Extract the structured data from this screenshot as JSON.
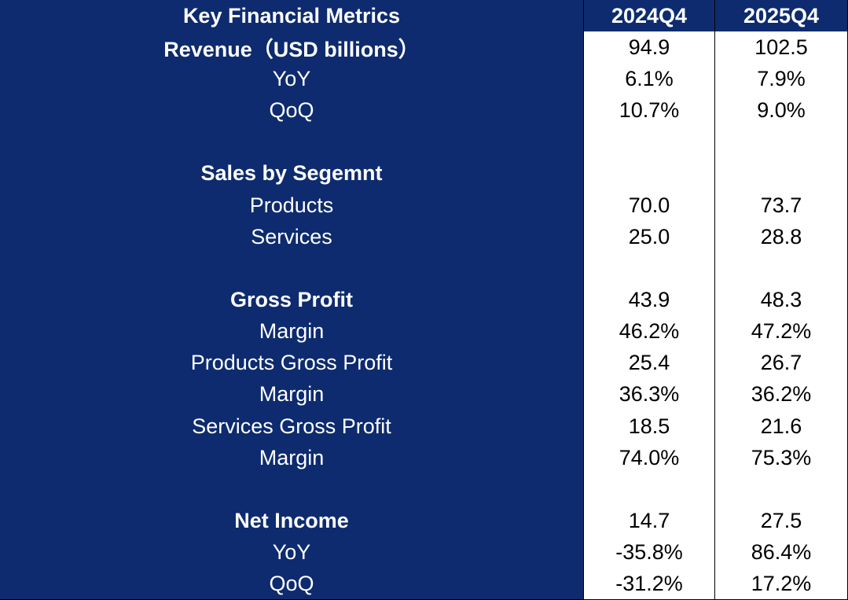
{
  "table": {
    "header": {
      "title": "Key Financial Metrics",
      "columns": [
        "2024Q4",
        "2025Q4"
      ]
    },
    "rows": [
      {
        "label": "Revenue（USD billions）",
        "values": [
          "94.9",
          "102.5"
        ],
        "bold": true
      },
      {
        "label": "YoY",
        "values": [
          "6.1%",
          "7.9%"
        ]
      },
      {
        "label": "QoQ",
        "values": [
          "10.7%",
          "9.0%"
        ]
      },
      null,
      {
        "label": "Sales by Segemnt",
        "bold": true
      },
      {
        "label": "Products",
        "values": [
          "70.0",
          "73.7"
        ]
      },
      {
        "label": "Services",
        "values": [
          "25.0",
          "28.8"
        ]
      },
      null,
      {
        "label": "Gross Profit",
        "values": [
          "43.9",
          "48.3"
        ],
        "bold": true
      },
      {
        "label": "Margin",
        "values": [
          "46.2%",
          "47.2%"
        ]
      },
      {
        "label": "Products Gross Profit",
        "values": [
          "25.4",
          "26.7"
        ]
      },
      {
        "label": "Margin",
        "values": [
          "36.3%",
          "36.2%"
        ]
      },
      {
        "label": "Services Gross Profit",
        "values": [
          "18.5",
          "21.6"
        ]
      },
      {
        "label": "Margin",
        "values": [
          "74.0%",
          "75.3%"
        ]
      },
      null,
      {
        "label": "Net Income",
        "values": [
          "14.7",
          "27.5"
        ],
        "bold": true
      },
      {
        "label": "YoY",
        "values": [
          "-35.8%",
          "86.4%"
        ]
      },
      {
        "label": "QoQ",
        "values": [
          "-31.2%",
          "17.2%"
        ]
      }
    ]
  }
}
